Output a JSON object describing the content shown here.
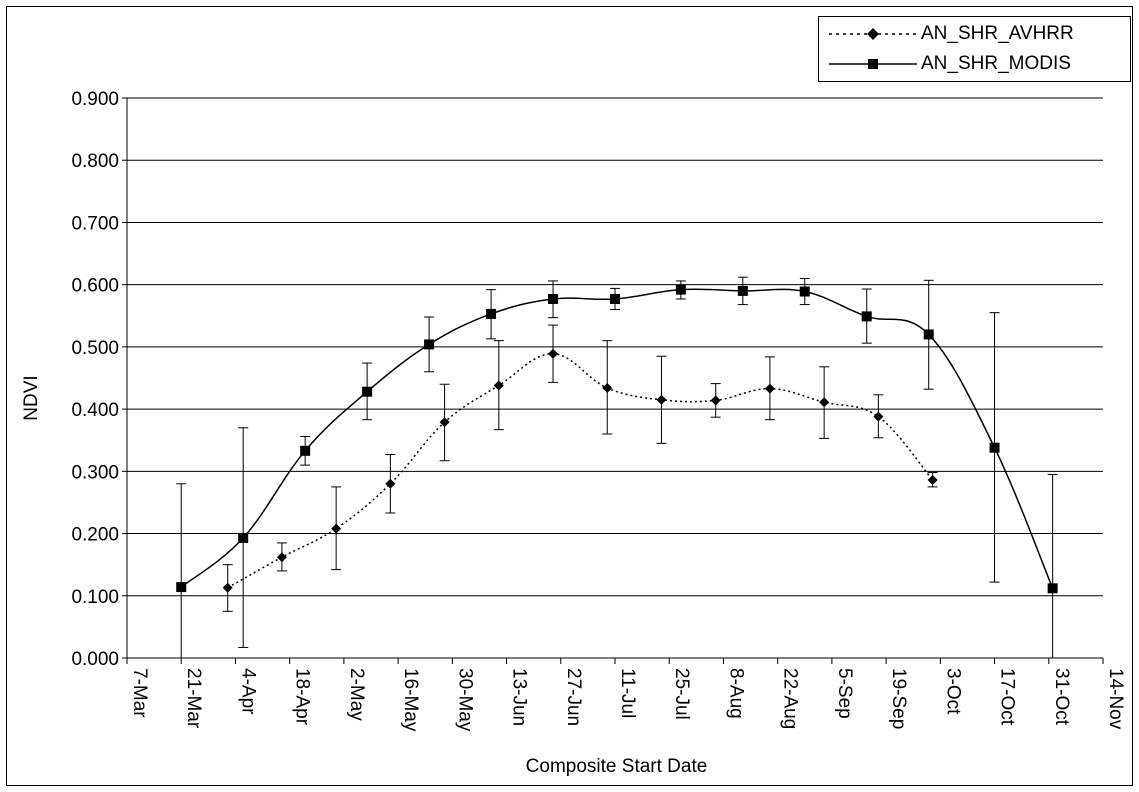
{
  "chart_data": {
    "type": "line",
    "xlabel": "Composite Start Date",
    "ylabel": "NDVI",
    "ylim": [
      0,
      0.9
    ],
    "yticks": [
      "0.000",
      "0.100",
      "0.200",
      "0.300",
      "0.400",
      "0.500",
      "0.600",
      "0.700",
      "0.800",
      "0.900"
    ],
    "xticks": [
      "7-Mar",
      "21-Mar",
      "4-Apr",
      "18-Apr",
      "2-May",
      "16-May",
      "30-May",
      "13-Jun",
      "27-Jun",
      "11-Jul",
      "25-Jul",
      "8-Aug",
      "22-Aug",
      "5-Sep",
      "19-Sep",
      "3-Oct",
      "17-Oct",
      "31-Oct",
      "14-Nov"
    ],
    "grid": "horizontal",
    "legend_position": "top-right",
    "series": [
      {
        "name": "AN_SHR_AVHRR",
        "line_style": "dotted",
        "marker": "diamond",
        "points": [
          {
            "x": "2-Apr",
            "y": 0.113,
            "err_low": 0.075,
            "err_high": 0.15
          },
          {
            "x": "16-Apr",
            "y": 0.162,
            "err_low": 0.14,
            "err_high": 0.185
          },
          {
            "x": "30-Apr",
            "y": 0.208,
            "err_low": 0.142,
            "err_high": 0.275
          },
          {
            "x": "14-May",
            "y": 0.28,
            "err_low": 0.233,
            "err_high": 0.327
          },
          {
            "x": "28-May",
            "y": 0.379,
            "err_low": 0.317,
            "err_high": 0.44
          },
          {
            "x": "11-Jun",
            "y": 0.438,
            "err_low": 0.367,
            "err_high": 0.51
          },
          {
            "x": "25-Jun",
            "y": 0.489,
            "err_low": 0.443,
            "err_high": 0.535
          },
          {
            "x": "9-Jul",
            "y": 0.434,
            "err_low": 0.36,
            "err_high": 0.51
          },
          {
            "x": "23-Jul",
            "y": 0.415,
            "err_low": 0.345,
            "err_high": 0.485
          },
          {
            "x": "6-Aug",
            "y": 0.414,
            "err_low": 0.387,
            "err_high": 0.441
          },
          {
            "x": "20-Aug",
            "y": 0.433,
            "err_low": 0.383,
            "err_high": 0.484
          },
          {
            "x": "3-Sep",
            "y": 0.411,
            "err_low": 0.353,
            "err_high": 0.468
          },
          {
            "x": "17-Sep",
            "y": 0.388,
            "err_low": 0.354,
            "err_high": 0.423
          },
          {
            "x": "1-Oct",
            "y": 0.286,
            "err_low": 0.275,
            "err_high": 0.298
          }
        ]
      },
      {
        "name": "AN_SHR_MODIS",
        "line_style": "solid",
        "marker": "square",
        "points": [
          {
            "x": "21-Mar",
            "y": 0.114,
            "err_low": 0.0,
            "err_high": 0.28
          },
          {
            "x": "6-Apr",
            "y": 0.193,
            "err_low": 0.017,
            "err_high": 0.37
          },
          {
            "x": "22-Apr",
            "y": 0.333,
            "err_low": 0.31,
            "err_high": 0.356
          },
          {
            "x": "8-May",
            "y": 0.428,
            "err_low": 0.383,
            "err_high": 0.474
          },
          {
            "x": "24-May",
            "y": 0.504,
            "err_low": 0.46,
            "err_high": 0.548
          },
          {
            "x": "9-Jun",
            "y": 0.553,
            "err_low": 0.513,
            "err_high": 0.592
          },
          {
            "x": "25-Jun",
            "y": 0.577,
            "err_low": 0.547,
            "err_high": 0.606
          },
          {
            "x": "11-Jul",
            "y": 0.577,
            "err_low": 0.56,
            "err_high": 0.594
          },
          {
            "x": "28-Jul",
            "y": 0.592,
            "err_low": 0.577,
            "err_high": 0.606
          },
          {
            "x": "13-Aug",
            "y": 0.59,
            "err_low": 0.568,
            "err_high": 0.612
          },
          {
            "x": "29-Aug",
            "y": 0.589,
            "err_low": 0.568,
            "err_high": 0.61
          },
          {
            "x": "14-Sep",
            "y": 0.549,
            "err_low": 0.506,
            "err_high": 0.593
          },
          {
            "x": "30-Sep",
            "y": 0.52,
            "err_low": 0.432,
            "err_high": 0.607
          },
          {
            "x": "17-Oct",
            "y": 0.338,
            "err_low": 0.122,
            "err_high": 0.555
          },
          {
            "x": "1-Nov",
            "y": 0.112,
            "err_low": 0.0,
            "err_high": 0.295
          }
        ]
      }
    ]
  },
  "colors": {
    "line": "#000000",
    "grid": "#000000",
    "background": "#ffffff"
  }
}
